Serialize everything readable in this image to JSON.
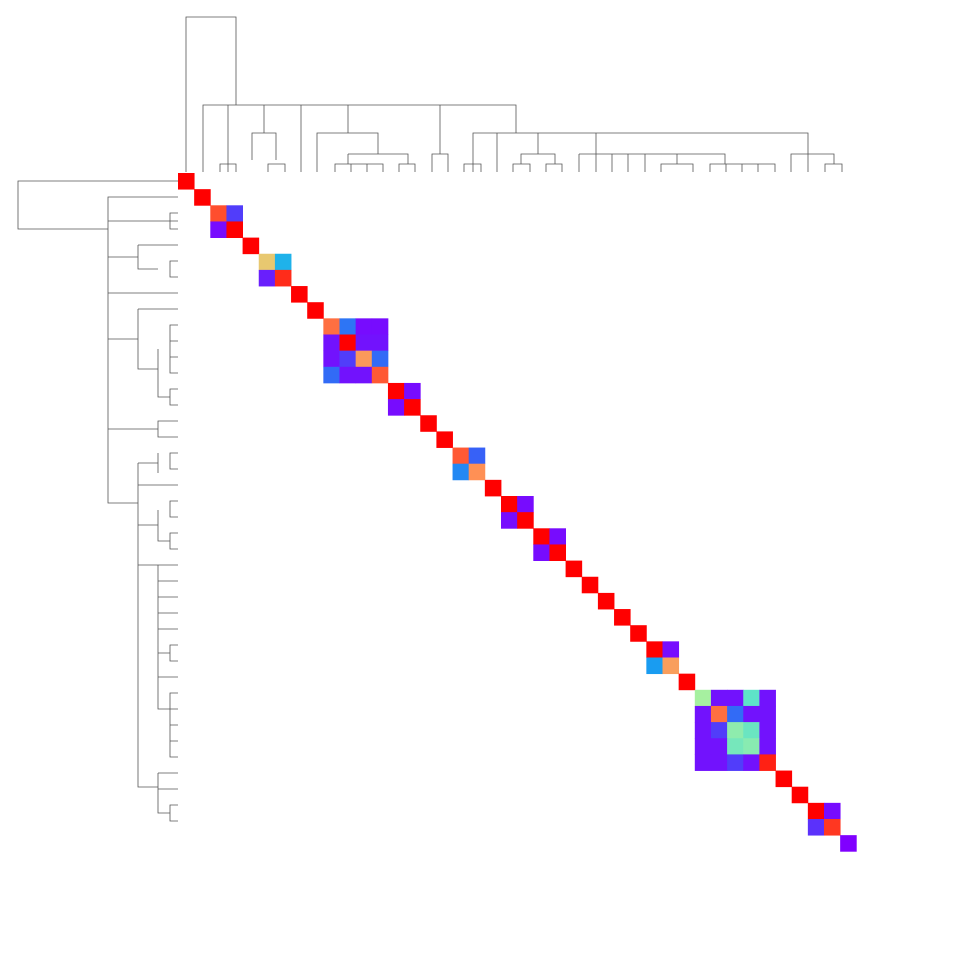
{
  "chart_data": {
    "type": "heatmap",
    "title": "",
    "n": 42,
    "grid": false,
    "colorscale": "rainbow",
    "color_stops": [
      {
        "v": 0.0,
        "c": "#8000ff"
      },
      {
        "v": 0.15,
        "c": "#3a5cf7"
      },
      {
        "v": 0.3,
        "c": "#14a6f0"
      },
      {
        "v": 0.45,
        "c": "#4ce0d2"
      },
      {
        "v": 0.6,
        "c": "#a6f0a0"
      },
      {
        "v": 0.75,
        "c": "#e8c870"
      },
      {
        "v": 0.87,
        "c": "#ff9055"
      },
      {
        "v": 1.0,
        "c": "#ff0000"
      }
    ],
    "blocks": [
      {
        "start": 0,
        "size": 1,
        "values": [
          [
            1.0
          ]
        ]
      },
      {
        "start": 1,
        "size": 1,
        "values": [
          [
            1.0
          ]
        ]
      },
      {
        "start": 2,
        "size": 2,
        "values": [
          [
            0.93,
            0.1
          ],
          [
            0.02,
            1.0
          ]
        ]
      },
      {
        "start": 4,
        "size": 1,
        "values": [
          [
            1.0
          ]
        ]
      },
      {
        "start": 5,
        "size": 2,
        "values": [
          [
            0.75,
            0.33
          ],
          [
            0.05,
            0.96
          ]
        ]
      },
      {
        "start": 7,
        "size": 1,
        "values": [
          [
            1.0
          ]
        ]
      },
      {
        "start": 8,
        "size": 1,
        "values": [
          [
            1.0
          ]
        ]
      },
      {
        "start": 9,
        "size": 4,
        "values": [
          [
            0.9,
            0.2,
            0.02,
            0.02
          ],
          [
            0.03,
            1.0,
            0.03,
            0.03
          ],
          [
            0.03,
            0.1,
            0.85,
            0.18
          ],
          [
            0.18,
            0.03,
            0.03,
            0.92
          ]
        ]
      },
      {
        "start": 13,
        "size": 2,
        "values": [
          [
            1.0,
            0.02
          ],
          [
            0.02,
            1.0
          ]
        ]
      },
      {
        "start": 15,
        "size": 1,
        "values": [
          [
            1.0
          ]
        ]
      },
      {
        "start": 16,
        "size": 1,
        "values": [
          [
            1.0
          ]
        ]
      },
      {
        "start": 17,
        "size": 2,
        "values": [
          [
            0.92,
            0.16
          ],
          [
            0.24,
            0.87
          ]
        ]
      },
      {
        "start": 19,
        "size": 1,
        "values": [
          [
            1.0
          ]
        ]
      },
      {
        "start": 20,
        "size": 2,
        "values": [
          [
            1.0,
            0.02
          ],
          [
            0.02,
            1.0
          ]
        ]
      },
      {
        "start": 22,
        "size": 2,
        "values": [
          [
            1.0,
            0.02
          ],
          [
            0.02,
            1.0
          ]
        ]
      },
      {
        "start": 24,
        "size": 1,
        "values": [
          [
            1.0
          ]
        ]
      },
      {
        "start": 25,
        "size": 1,
        "values": [
          [
            1.0
          ]
        ]
      },
      {
        "start": 26,
        "size": 1,
        "values": [
          [
            1.0
          ]
        ]
      },
      {
        "start": 27,
        "size": 1,
        "values": [
          [
            1.0
          ]
        ]
      },
      {
        "start": 28,
        "size": 1,
        "values": [
          [
            1.0
          ]
        ]
      },
      {
        "start": 29,
        "size": 2,
        "values": [
          [
            1.0,
            0.02
          ],
          [
            0.28,
            0.84
          ]
        ]
      },
      {
        "start": 31,
        "size": 1,
        "values": [
          [
            1.0
          ]
        ]
      },
      {
        "start": 32,
        "size": 5,
        "values": [
          [
            0.6,
            0.03,
            0.03,
            0.48,
            0.03
          ],
          [
            0.03,
            0.9,
            0.18,
            0.03,
            0.03
          ],
          [
            0.03,
            0.1,
            0.56,
            0.5,
            0.03
          ],
          [
            0.03,
            0.03,
            0.52,
            0.55,
            0.03
          ],
          [
            0.03,
            0.03,
            0.1,
            0.03,
            0.97
          ]
        ]
      },
      {
        "start": 37,
        "size": 1,
        "values": [
          [
            1.0
          ]
        ]
      },
      {
        "start": 38,
        "size": 1,
        "values": [
          [
            1.0
          ]
        ]
      },
      {
        "start": 39,
        "size": 2,
        "values": [
          [
            1.0,
            0.02
          ],
          [
            0.08,
            0.95
          ]
        ]
      },
      {
        "start": 41,
        "size": 1,
        "values": [
          [
            0.0
          ]
        ]
      }
    ]
  }
}
